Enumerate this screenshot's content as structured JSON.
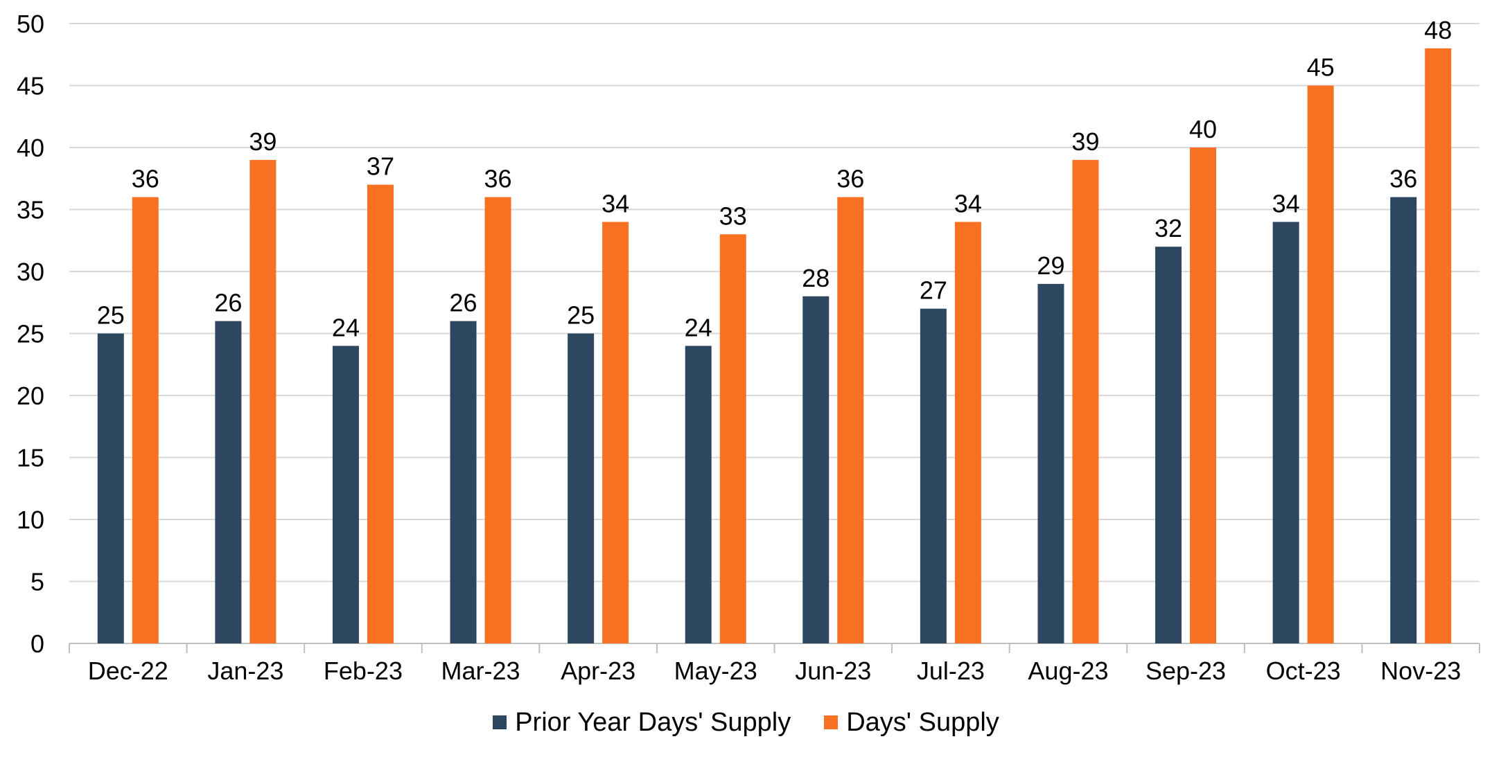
{
  "chart_data": {
    "type": "bar",
    "title": "",
    "xlabel": "",
    "ylabel": "",
    "ylim": [
      0,
      50
    ],
    "yticks": [
      0,
      5,
      10,
      15,
      20,
      25,
      30,
      35,
      40,
      45,
      50
    ],
    "grid": true,
    "legend_position": "bottom",
    "categories": [
      "Dec-22",
      "Jan-23",
      "Feb-23",
      "Mar-23",
      "Apr-23",
      "May-23",
      "Jun-23",
      "Jul-23",
      "Aug-23",
      "Sep-23",
      "Oct-23",
      "Nov-23"
    ],
    "series": [
      {
        "name": "Prior Year Days' Supply",
        "color": "#2e4760",
        "values": [
          25,
          26,
          24,
          26,
          25,
          24,
          28,
          27,
          29,
          32,
          34,
          36
        ]
      },
      {
        "name": "Days' Supply",
        "color": "#f87021",
        "values": [
          36,
          39,
          37,
          36,
          34,
          33,
          36,
          34,
          39,
          40,
          45,
          48
        ]
      }
    ]
  }
}
